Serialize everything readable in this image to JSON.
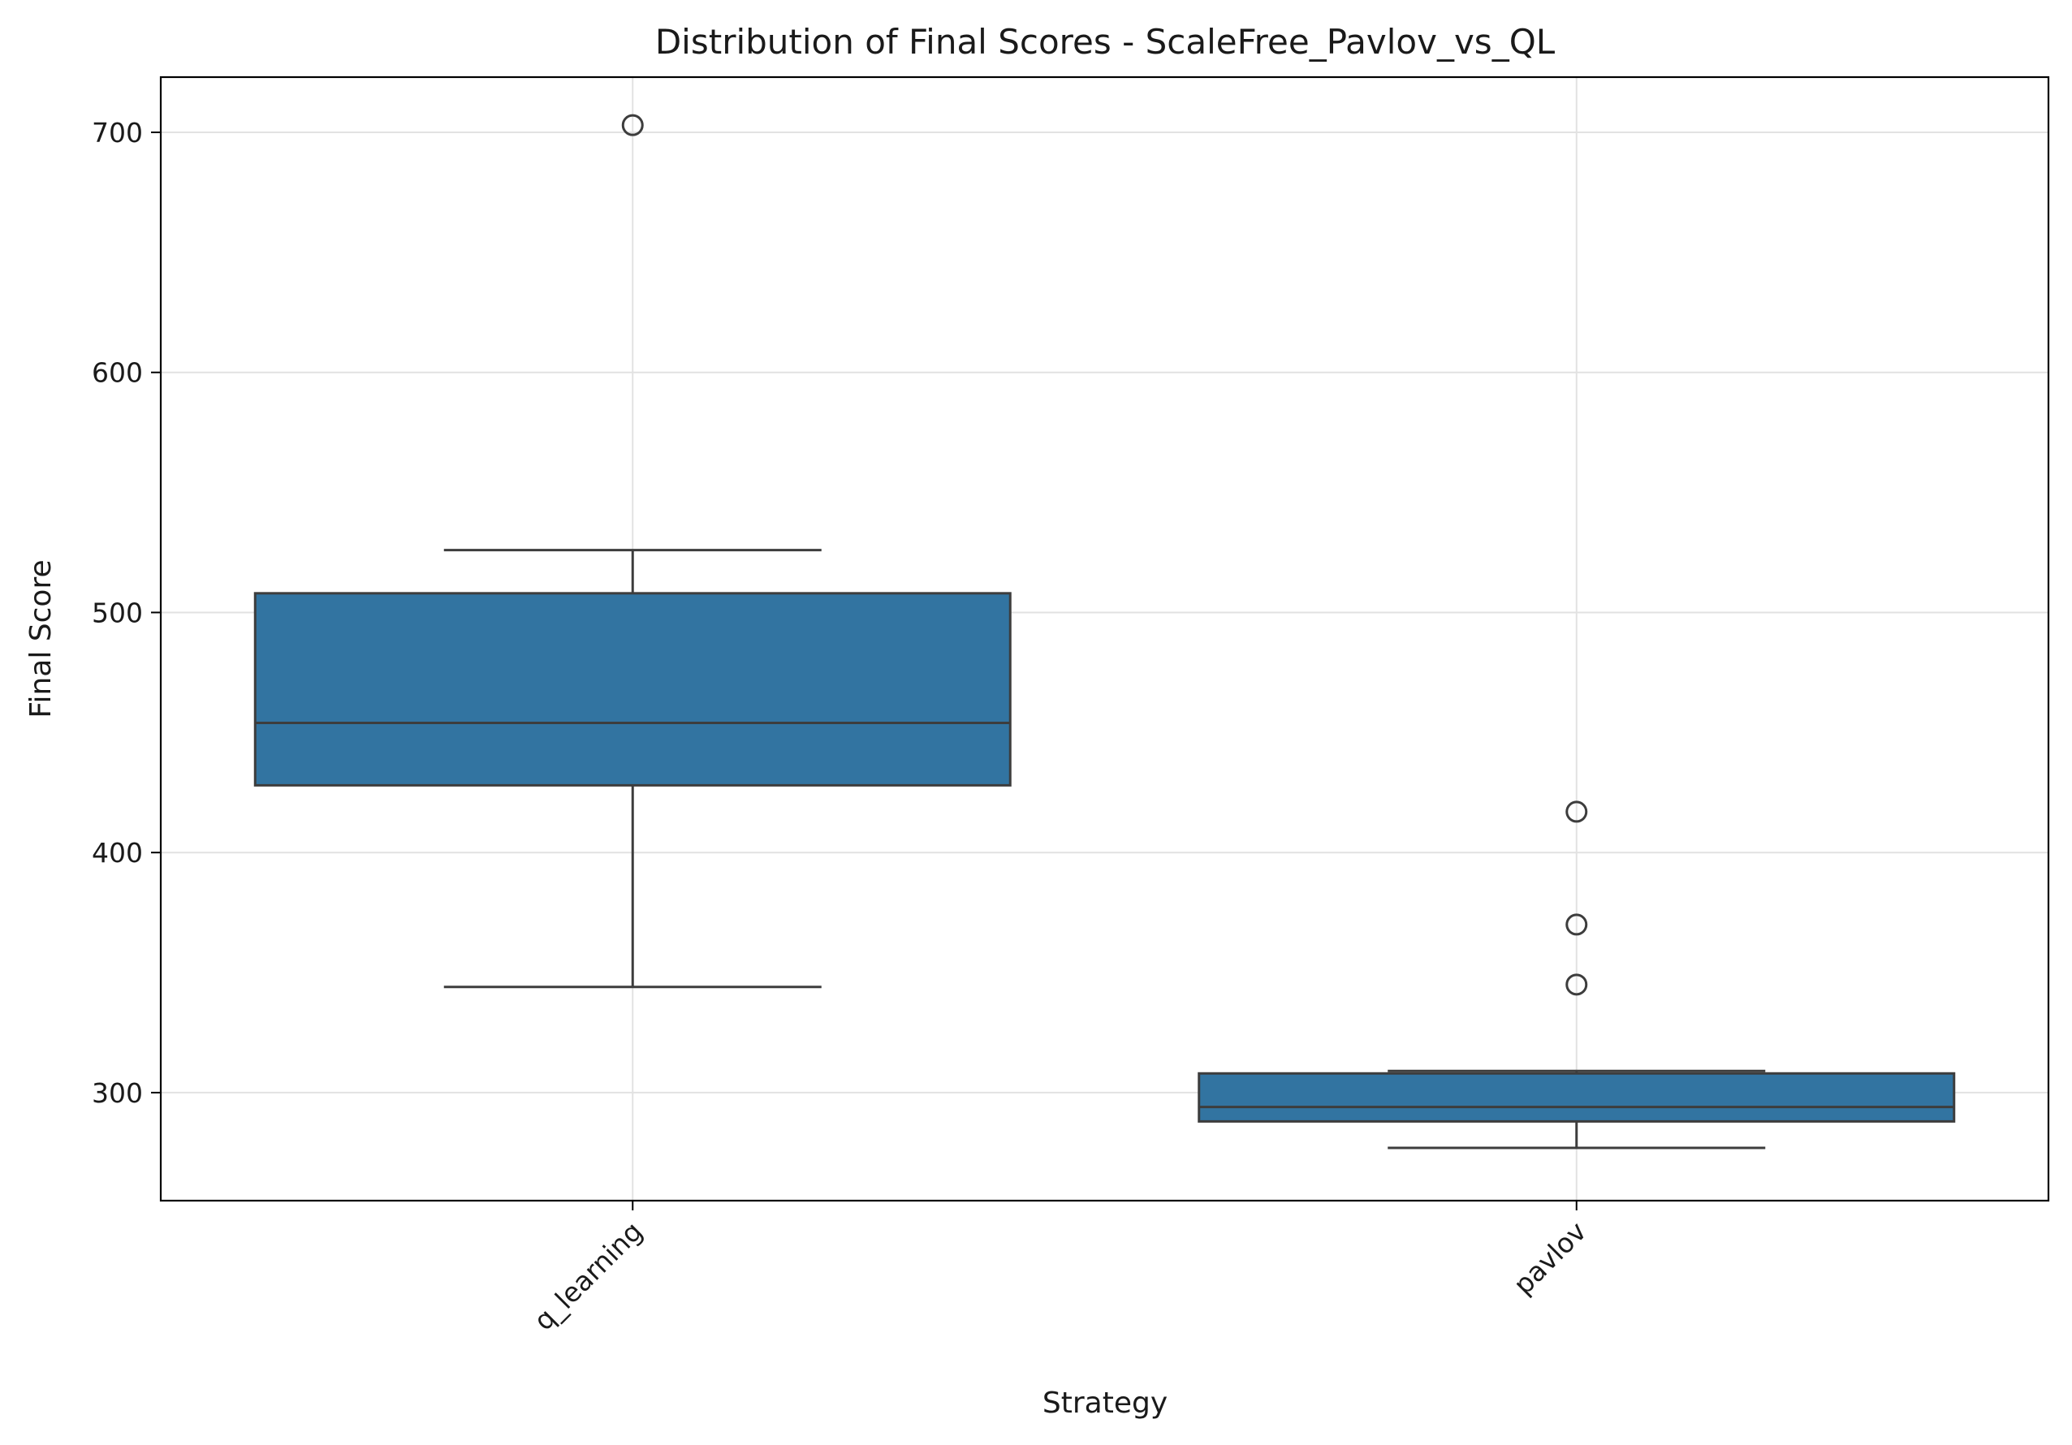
{
  "chart_data": {
    "type": "box",
    "title": "Distribution of Final Scores - ScaleFree_Pavlov_vs_QL",
    "xlabel": "Strategy",
    "ylabel": "Final Score",
    "categories": [
      "q_learning",
      "pavlov"
    ],
    "y_ticks": [
      300,
      400,
      500,
      600,
      700
    ],
    "ylim": [
      255,
      723
    ],
    "grid": true,
    "box_color": "#3274a1",
    "line_color": "#3d3d3d",
    "boxes": [
      {
        "category": "q_learning",
        "whisker_low": 344,
        "q1": 428,
        "median": 454,
        "q3": 508,
        "whisker_high": 526,
        "outliers": [
          703
        ]
      },
      {
        "category": "pavlov",
        "whisker_low": 277,
        "q1": 288,
        "median": 294,
        "q3": 308,
        "whisker_high": 309,
        "outliers": [
          417,
          370,
          345
        ]
      }
    ]
  }
}
